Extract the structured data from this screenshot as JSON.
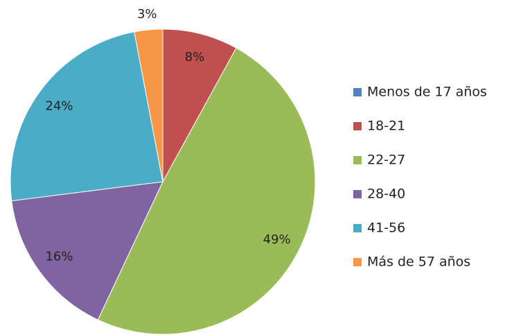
{
  "chart_data": {
    "type": "pie",
    "categories": [
      "Menos de 17 años",
      "18-21",
      "22-27",
      "28-40",
      "41-56",
      "Más de 57 años"
    ],
    "values": [
      0,
      8,
      49,
      16,
      24,
      3
    ],
    "value_labels": [
      null,
      "8%",
      "49%",
      "16%",
      "24%",
      "3%"
    ],
    "colors": [
      "#4f81bd",
      "#c0504d",
      "#9bbb59",
      "#8064a2",
      "#4bacc6",
      "#f79646"
    ],
    "legend": "right"
  }
}
